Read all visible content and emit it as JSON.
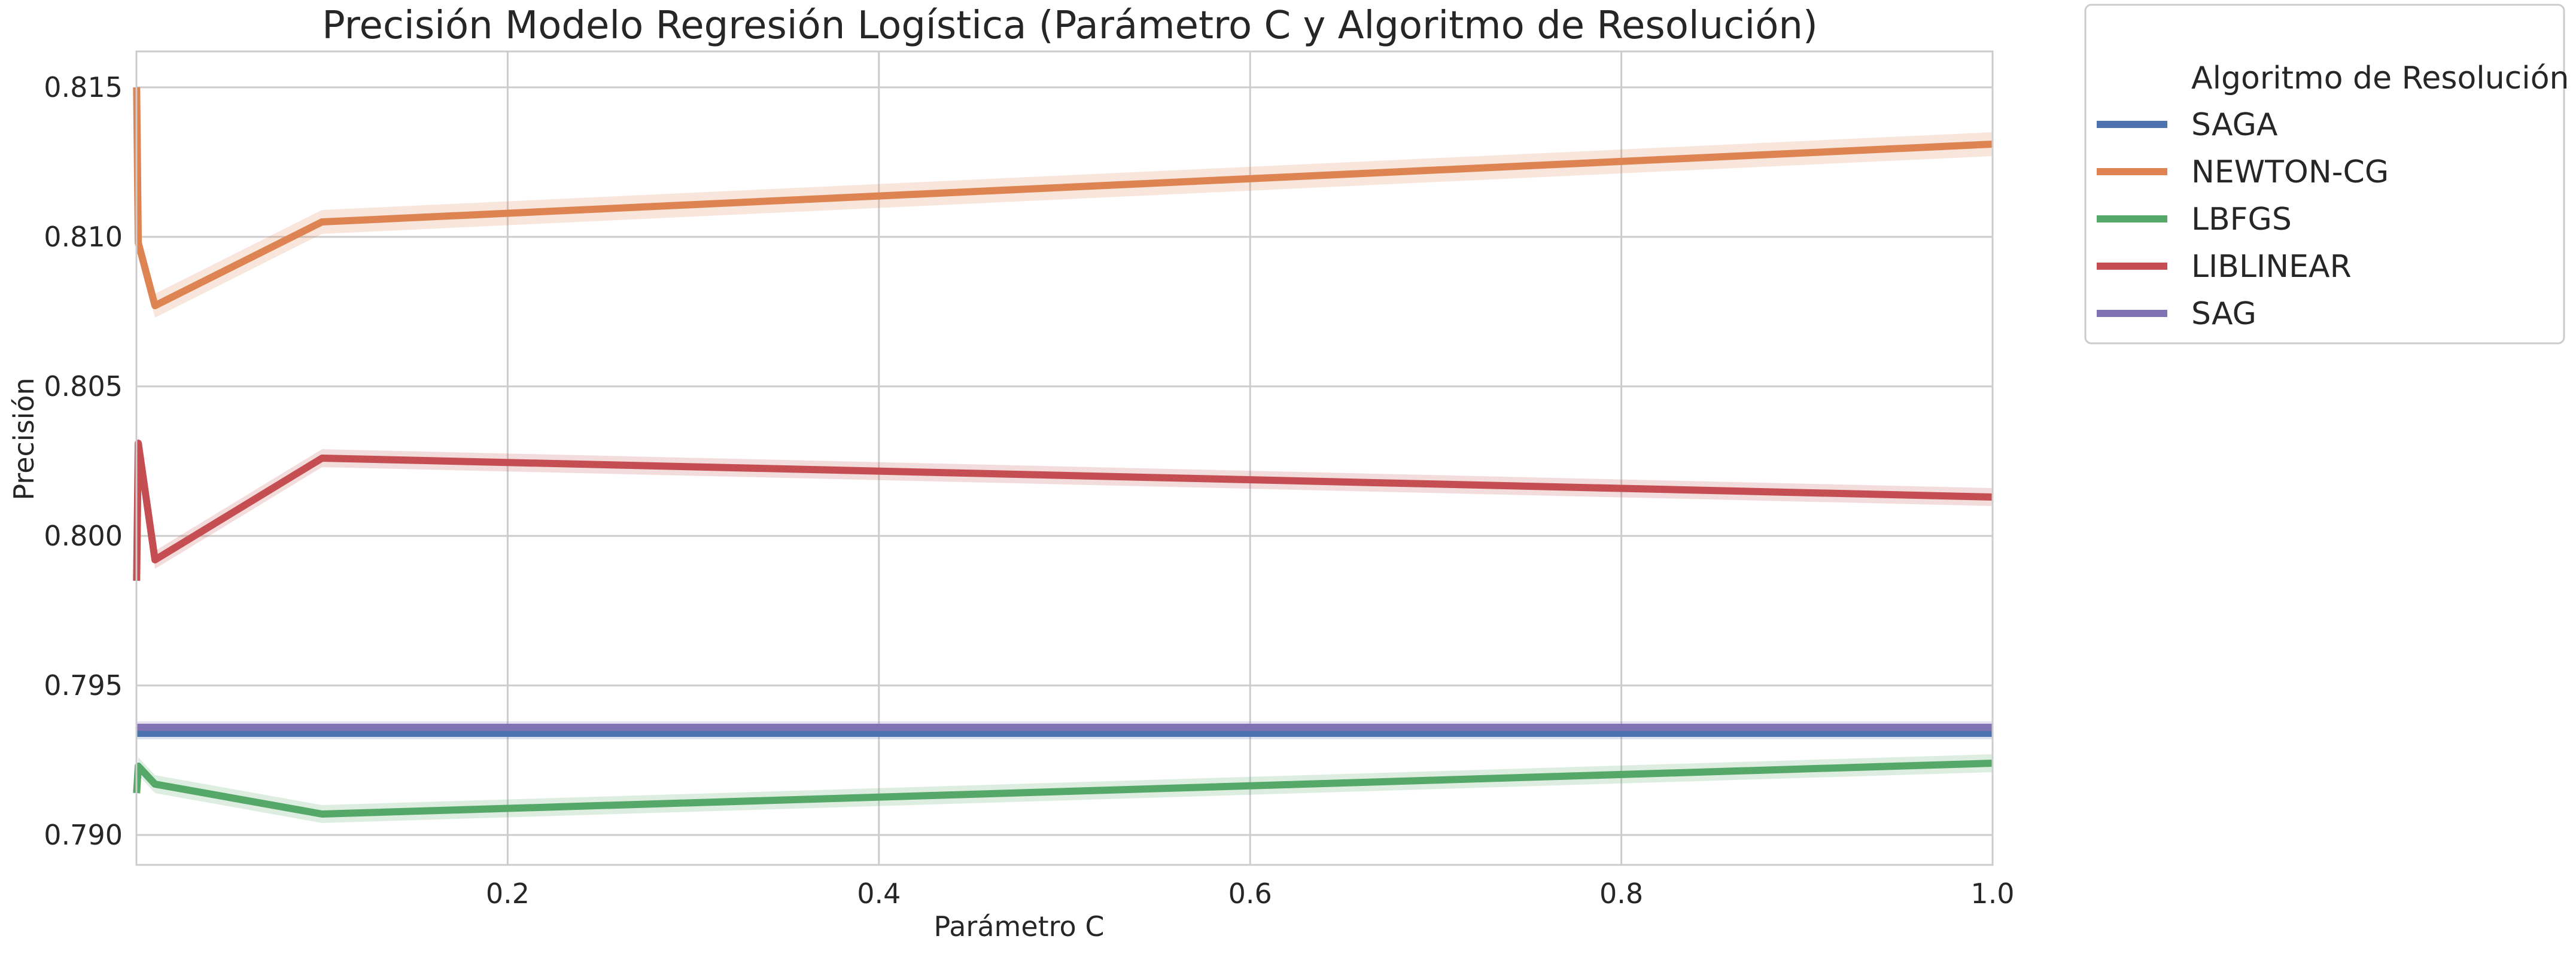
{
  "chart_data": {
    "type": "line",
    "title": "Precisión Modelo Regresión Logística (Parámetro C y Algoritmo de Resolución)",
    "xlabel": "Parámetro C",
    "ylabel": "Precisión",
    "xlim": [
      0.0,
      1.0
    ],
    "ylim": [
      0.789,
      0.8162
    ],
    "x_ticks": [
      0.2,
      0.4,
      0.6,
      0.8,
      1.0
    ],
    "x_tick_labels": [
      "0.2",
      "0.4",
      "0.6",
      "0.8",
      "1.0"
    ],
    "y_ticks": [
      0.79,
      0.795,
      0.8,
      0.805,
      0.81,
      0.815
    ],
    "y_tick_labels": [
      "0.790",
      "0.795",
      "0.800",
      "0.805",
      "0.810",
      "0.815"
    ],
    "grid": true,
    "legend": {
      "title": "Algoritmo de Resolución",
      "placement": "outside-top-right"
    },
    "series": [
      {
        "name": "SAGA",
        "color": "#4c72b0",
        "points": [
          [
            0.0001,
            0.7934
          ],
          [
            0.001,
            0.7934
          ],
          [
            0.01,
            0.7934
          ],
          [
            0.1,
            0.7934
          ],
          [
            1.0,
            0.7934
          ]
        ],
        "band": 0.0002
      },
      {
        "name": "NEWTON-CG",
        "color": "#dd8452",
        "points": [
          [
            0.0001,
            0.815
          ],
          [
            0.001,
            0.8098
          ],
          [
            0.01,
            0.8077
          ],
          [
            0.1,
            0.8105
          ],
          [
            1.0,
            0.8131
          ]
        ],
        "band": 0.0004
      },
      {
        "name": "LBFGS",
        "color": "#55a868",
        "points": [
          [
            0.0001,
            0.7914
          ],
          [
            0.001,
            0.7923
          ],
          [
            0.01,
            0.7917
          ],
          [
            0.1,
            0.7907
          ],
          [
            1.0,
            0.7924
          ]
        ],
        "band": 0.0003
      },
      {
        "name": "LIBLINEAR",
        "color": "#c44e52",
        "points": [
          [
            0.0001,
            0.7985
          ],
          [
            0.001,
            0.8031
          ],
          [
            0.01,
            0.7992
          ],
          [
            0.1,
            0.8026
          ],
          [
            1.0,
            0.8013
          ]
        ],
        "band": 0.0003
      },
      {
        "name": "SAG",
        "color": "#8172b3",
        "points": [
          [
            0.0001,
            0.7936
          ],
          [
            0.001,
            0.7936
          ],
          [
            0.01,
            0.7936
          ],
          [
            0.1,
            0.7936
          ],
          [
            1.0,
            0.7936
          ]
        ],
        "band": 0.0002
      }
    ]
  }
}
